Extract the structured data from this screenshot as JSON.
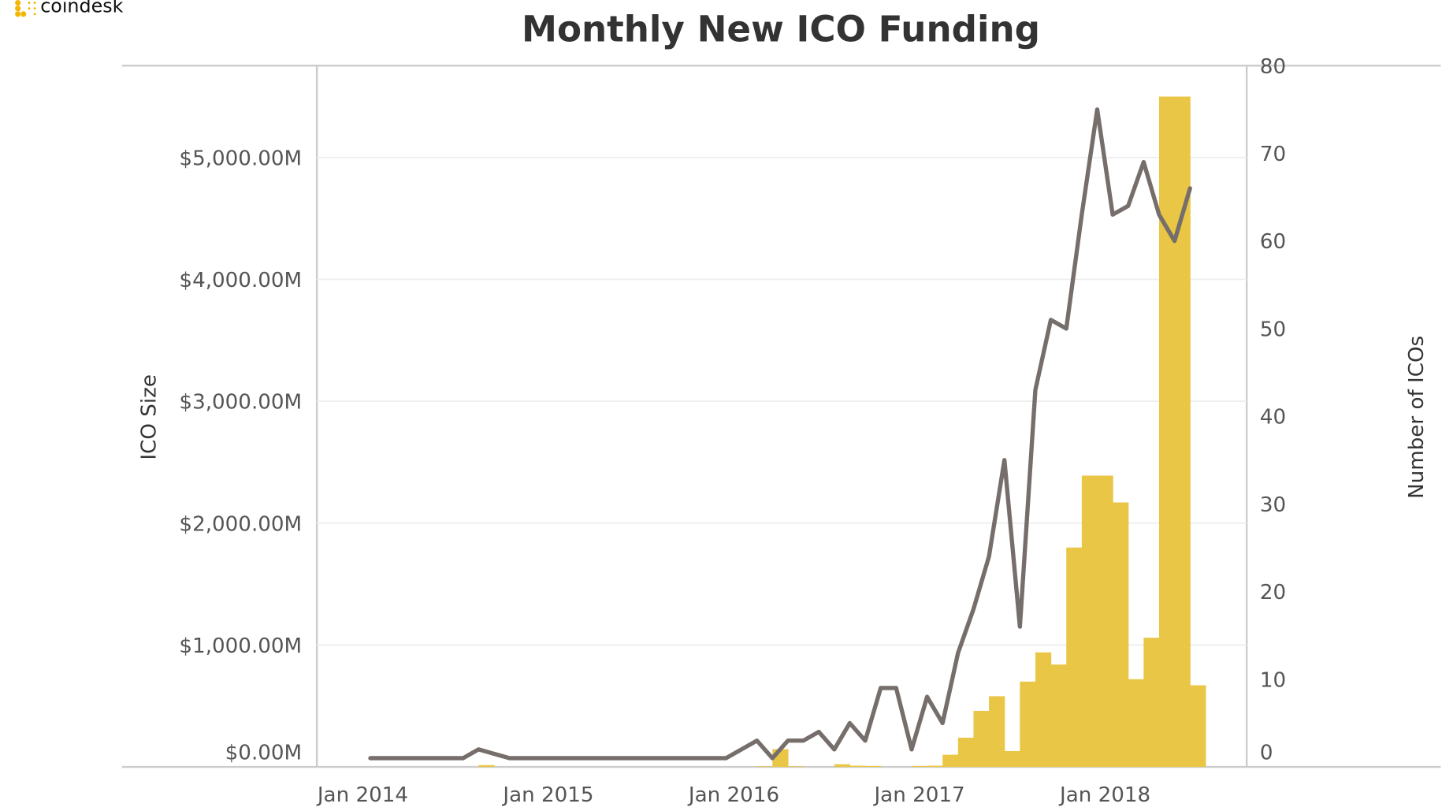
{
  "brand": {
    "logo_text": "coindesk",
    "color": "#f2b705"
  },
  "chart_data": {
    "type": "bar+line",
    "title": "Monthly New ICO Funding",
    "start_month": "Jan 2014",
    "x_tick_labels": [
      "Jan 2014",
      "Jan 2015",
      "Jan 2016",
      "Jan 2017",
      "Jan 2018"
    ],
    "x_tick_index": [
      0,
      12,
      24,
      36,
      48
    ],
    "left_axis": {
      "label": "ICO Size",
      "ylim": [
        0,
        5750
      ],
      "ticks": [
        0,
        1000,
        2000,
        3000,
        4000,
        5000
      ],
      "tick_labels": [
        "$0.00M",
        "$1,000.00M",
        "$2,000.00M",
        "$3,000.00M",
        "$4,000.00M",
        "$5,000.00M"
      ]
    },
    "right_axis": {
      "label": "Number of ICOs",
      "ylim": [
        0,
        80
      ],
      "ticks": [
        0,
        10,
        20,
        30,
        40,
        50,
        60,
        70,
        80
      ],
      "tick_labels": [
        "0",
        "10",
        "20",
        "30",
        "40",
        "50",
        "60",
        "70",
        "80"
      ]
    },
    "series": [
      {
        "name": "ICO Size ($M)",
        "type": "bar",
        "axis": "left",
        "color": "#e9c645",
        "values": [
          0,
          0,
          0,
          0,
          0,
          0,
          0,
          15,
          0,
          0,
          0,
          0,
          0,
          0,
          0,
          0,
          0,
          0,
          0,
          0,
          0,
          0,
          0,
          0,
          0,
          5,
          146,
          5,
          0,
          0,
          22,
          10,
          8,
          0,
          0,
          8,
          10,
          100,
          240,
          460,
          580,
          130,
          700,
          940,
          840,
          1800,
          2390,
          2390,
          2170,
          720,
          1060,
          5500,
          5500,
          670
        ]
      },
      {
        "name": "Number of ICOs",
        "type": "line",
        "axis": "right",
        "color": "#756e6b",
        "values": [
          1,
          1,
          1,
          1,
          1,
          1,
          1,
          2,
          1.5,
          1,
          1,
          1,
          1,
          1,
          1,
          1,
          1,
          1,
          1,
          1,
          1,
          1,
          1,
          1,
          2,
          3,
          1,
          3,
          3,
          4,
          2,
          5,
          3,
          9,
          9,
          2,
          8,
          5,
          13,
          18,
          24,
          35,
          16,
          43,
          51,
          50,
          63,
          75,
          63,
          64,
          69,
          63,
          60,
          66
        ]
      }
    ]
  }
}
